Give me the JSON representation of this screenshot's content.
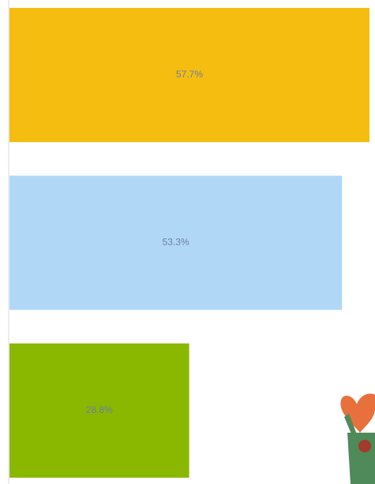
{
  "chart_data": {
    "type": "bar",
    "orientation": "horizontal",
    "values": [
      57.7,
      53.3,
      28.8
    ],
    "value_labels": [
      "57.7%",
      "53.3%",
      "28.8%"
    ],
    "colors": [
      "#f5bd10",
      "#b0d8f6",
      "#8ab800"
    ]
  }
}
